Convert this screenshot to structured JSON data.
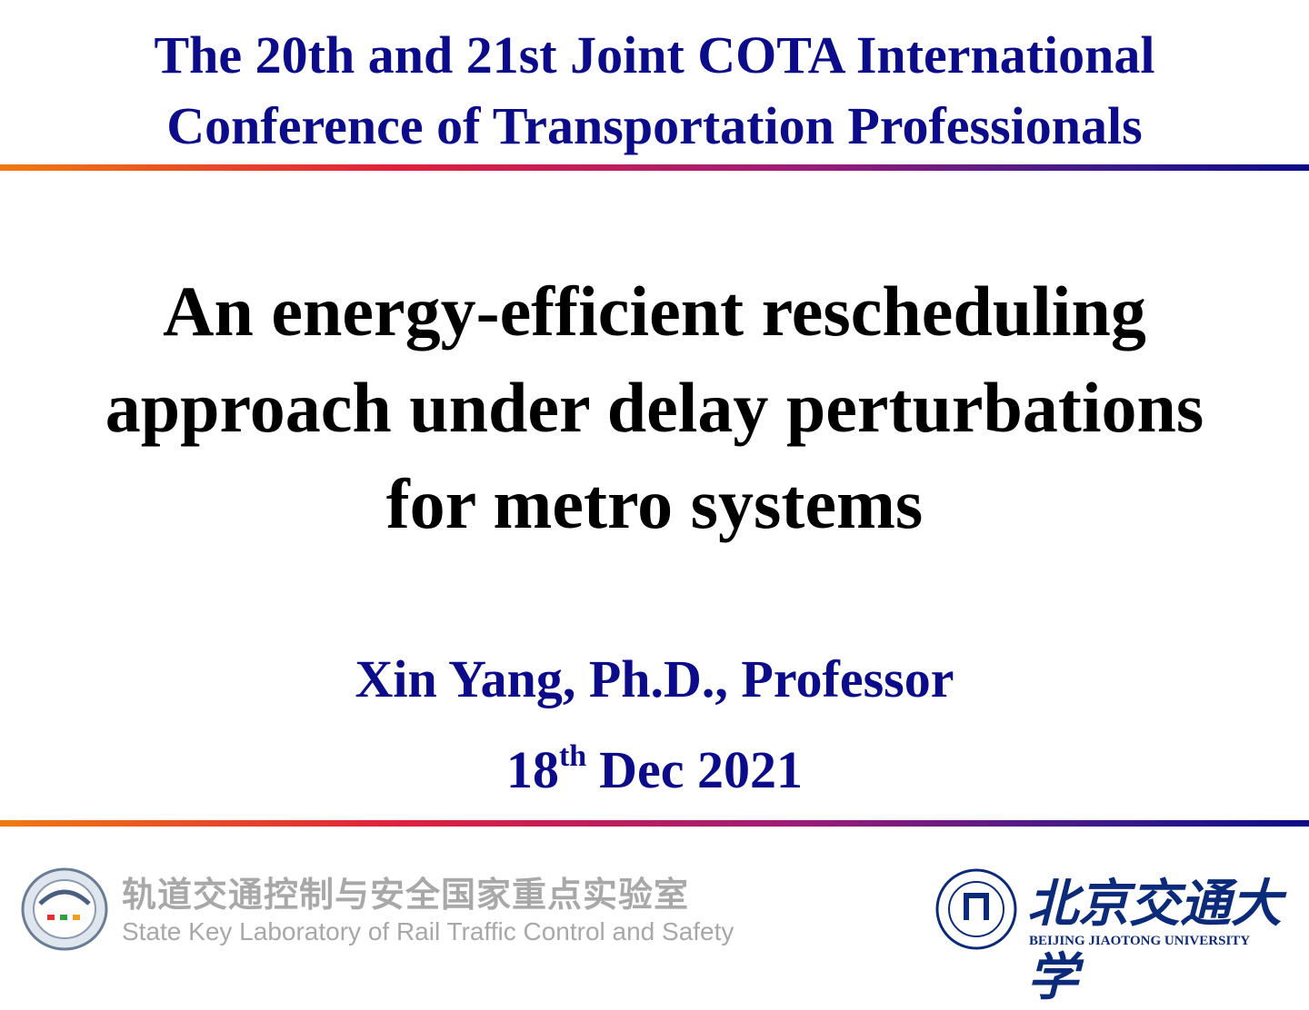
{
  "header": {
    "lines": [
      "The 20th and 21st Joint COTA International",
      "Conference of Transportation Professionals"
    ]
  },
  "title": {
    "lines": [
      "An energy-efficient rescheduling",
      "approach under delay perturbations",
      "for metro systems"
    ]
  },
  "author": "Xin Yang, Ph.D., Professor",
  "date": {
    "day": "18",
    "suffix": "th",
    "rest": "Dec 2021"
  },
  "footer": {
    "lab": {
      "name_cn": "轨道交通控制与安全国家重点实验室",
      "name_en": "State Key Laboratory of Rail Traffic Control and Safety"
    },
    "university": {
      "name_cn": "北京交通大学",
      "name_en": "BEIJING JIAOTONG UNIVERSITY"
    }
  }
}
